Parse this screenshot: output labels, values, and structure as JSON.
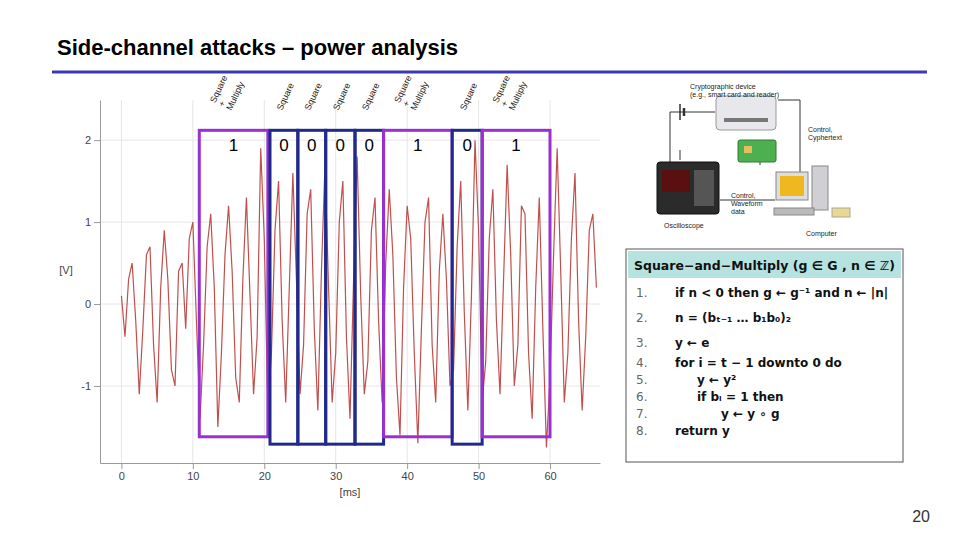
{
  "slide": {
    "title": "Side-channel attacks – power analysis",
    "page_number": 20,
    "algorithm": {
      "header": "Square−and−Multiply (g ∈ G , n ∈ ℤ)",
      "lines": [
        {
          "number": "1.",
          "text": "if n < 0 then g ← g⁻¹ and n ← |n|"
        },
        {
          "number": "2.",
          "text": "n = (bₜ₋₁ … b₁b₀)₂"
        },
        {
          "number": "3.",
          "text": "y ← e"
        },
        {
          "number": "4.",
          "text": "for i = t − 1 downto 0 do"
        },
        {
          "number": "5.",
          "text": "y ← y²"
        },
        {
          "number": "6.",
          "text": "if bᵢ = 1 then"
        },
        {
          "number": "7.",
          "text": "y ← y ∘ g"
        },
        {
          "number": "8.",
          "text": "return y"
        }
      ]
    },
    "setup_diagram": {
      "device": [
        "Cryptographic device",
        "(e.g., smart card and reader)"
      ],
      "control_cyphertext": [
        "Control,",
        "Cyphertext"
      ],
      "control_waveform": [
        "Control,",
        "Waveform",
        "data"
      ],
      "oscilloscope": "Oscilloscope",
      "computer": "Computer"
    }
  },
  "chart_data": {
    "type": "line",
    "x_label": "[ms]",
    "y_label": "[V]",
    "color": "#c0504d",
    "grid": true,
    "xlim": [
      -3,
      67
    ],
    "xticks": [
      0,
      10,
      20,
      30,
      40,
      50,
      60
    ],
    "ylim": [
      -1.94,
      2.49
    ],
    "yticks": [
      -1,
      0,
      1,
      2
    ],
    "x": [
      0,
      0.5,
      1,
      1.5,
      2,
      2.5,
      3,
      3.5,
      4,
      4.5,
      5,
      5.5,
      6,
      6.5,
      7,
      7.5,
      8,
      8.5,
      9,
      9.5,
      10,
      10.5,
      11,
      11.5,
      12,
      12.5,
      13,
      13.5,
      14,
      14.5,
      15,
      15.5,
      16,
      16.5,
      17,
      17.5,
      18,
      18.5,
      19,
      19.5,
      20,
      20.5,
      21,
      21.5,
      22,
      22.5,
      23,
      23.5,
      24,
      24.5,
      25,
      25.5,
      26,
      26.5,
      27,
      27.5,
      28,
      28.5,
      29,
      29.5,
      30,
      30.5,
      31,
      31.5,
      32,
      32.5,
      33,
      33.5,
      34,
      34.5,
      35,
      35.5,
      36,
      36.5,
      37,
      37.5,
      38,
      38.5,
      39,
      39.5,
      40,
      40.5,
      41,
      41.5,
      42,
      42.5,
      43,
      43.5,
      44,
      44.5,
      45,
      45.5,
      46,
      46.5,
      47,
      47.5,
      48,
      48.5,
      49,
      49.5,
      50,
      50.5,
      51,
      51.5,
      52,
      52.5,
      53,
      53.5,
      54,
      54.5,
      55,
      55.5,
      56,
      56.5,
      57,
      57.5,
      58,
      58.5,
      59,
      59.5,
      60,
      60.5,
      61,
      61.5,
      62,
      62.5,
      63,
      63.5,
      64,
      64.5,
      65,
      65.5,
      66,
      66.5
    ],
    "values": [
      0.1,
      -0.4,
      0.3,
      0.5,
      -0.2,
      -1.1,
      -0.3,
      0.6,
      0.7,
      -0.5,
      -1.2,
      0.2,
      0.9,
      0.3,
      -0.8,
      -1.0,
      0.4,
      0.5,
      -0.3,
      0.8,
      1.0,
      -0.2,
      -1.4,
      -0.5,
      0.7,
      1.1,
      0.2,
      -1.5,
      -0.6,
      0.6,
      1.2,
      0.4,
      -0.9,
      -1.2,
      0.3,
      1.3,
      0.1,
      -1.1,
      -0.4,
      1.9,
      0.8,
      -1.3,
      -0.6,
      0.9,
      1.5,
      -0.2,
      -1.2,
      0.2,
      1.6,
      0.3,
      -1.1,
      -0.5,
      1.1,
      1.4,
      -0.3,
      -1.3,
      0.4,
      1.7,
      0.2,
      -1.2,
      -0.6,
      1.0,
      1.5,
      -0.4,
      -1.4,
      0.3,
      1.8,
      0.1,
      -1.1,
      -0.7,
      0.9,
      1.3,
      -0.2,
      -1.2,
      0.5,
      1.4,
      0.6,
      -0.9,
      -1.6,
      0.2,
      1.2,
      0.8,
      -0.6,
      -1.7,
      -0.3,
      1.0,
      1.3,
      -0.5,
      -1.2,
      0.4,
      1.1,
      0.3,
      -1.0,
      -0.8,
      0.7,
      1.5,
      -0.1,
      -1.3,
      0.1,
      2.0,
      0.9,
      -1.2,
      -0.7,
      0.8,
      1.4,
      -0.2,
      -1.1,
      0.3,
      1.7,
      0.6,
      -1.0,
      -0.5,
      1.2,
      1.1,
      -0.6,
      -1.4,
      0.2,
      1.3,
      -0.3,
      -1.75,
      -0.9,
      0.6,
      1.9,
      0.4,
      -1.2,
      -0.6,
      0.8,
      1.6,
      -0.2,
      -1.3,
      -0.4,
      0.9,
      1.1,
      0.2
    ],
    "annotations": [
      {
        "x0": 10.9,
        "x1": 20.5,
        "y0": -1.62,
        "y1": 2.12,
        "bit": "1",
        "label": [
          "Square",
          "+",
          "Multiply"
        ],
        "color": "#9b30d0"
      },
      {
        "x0": 20.8,
        "x1": 24.7,
        "y0": -1.71,
        "y1": 2.12,
        "bit": "0",
        "label": [
          "Square"
        ],
        "color": "#1f2a8a"
      },
      {
        "x0": 24.7,
        "x1": 28.6,
        "y0": -1.71,
        "y1": 2.12,
        "bit": "0",
        "label": [
          "Square"
        ],
        "color": "#1f2a8a"
      },
      {
        "x0": 28.6,
        "x1": 32.7,
        "y0": -1.71,
        "y1": 2.12,
        "bit": "0",
        "label": [
          "Square"
        ],
        "color": "#1f2a8a"
      },
      {
        "x0": 32.7,
        "x1": 36.7,
        "y0": -1.71,
        "y1": 2.12,
        "bit": "0",
        "label": [
          "Square"
        ],
        "color": "#1f2a8a"
      },
      {
        "x0": 36.7,
        "x1": 46.3,
        "y0": -1.62,
        "y1": 2.12,
        "bit": "1",
        "label": [
          "Square",
          "+",
          "Multiply"
        ],
        "color": "#9b30d0"
      },
      {
        "x0": 46.3,
        "x1": 50.5,
        "y0": -1.71,
        "y1": 2.12,
        "bit": "0",
        "label": [
          "Square"
        ],
        "color": "#1f2a8a"
      },
      {
        "x0": 50.5,
        "x1": 60.0,
        "y0": -1.62,
        "y1": 2.12,
        "bit": "1",
        "label": [
          "Square",
          "+",
          "Multiply"
        ],
        "color": "#9b30d0"
      }
    ]
  }
}
